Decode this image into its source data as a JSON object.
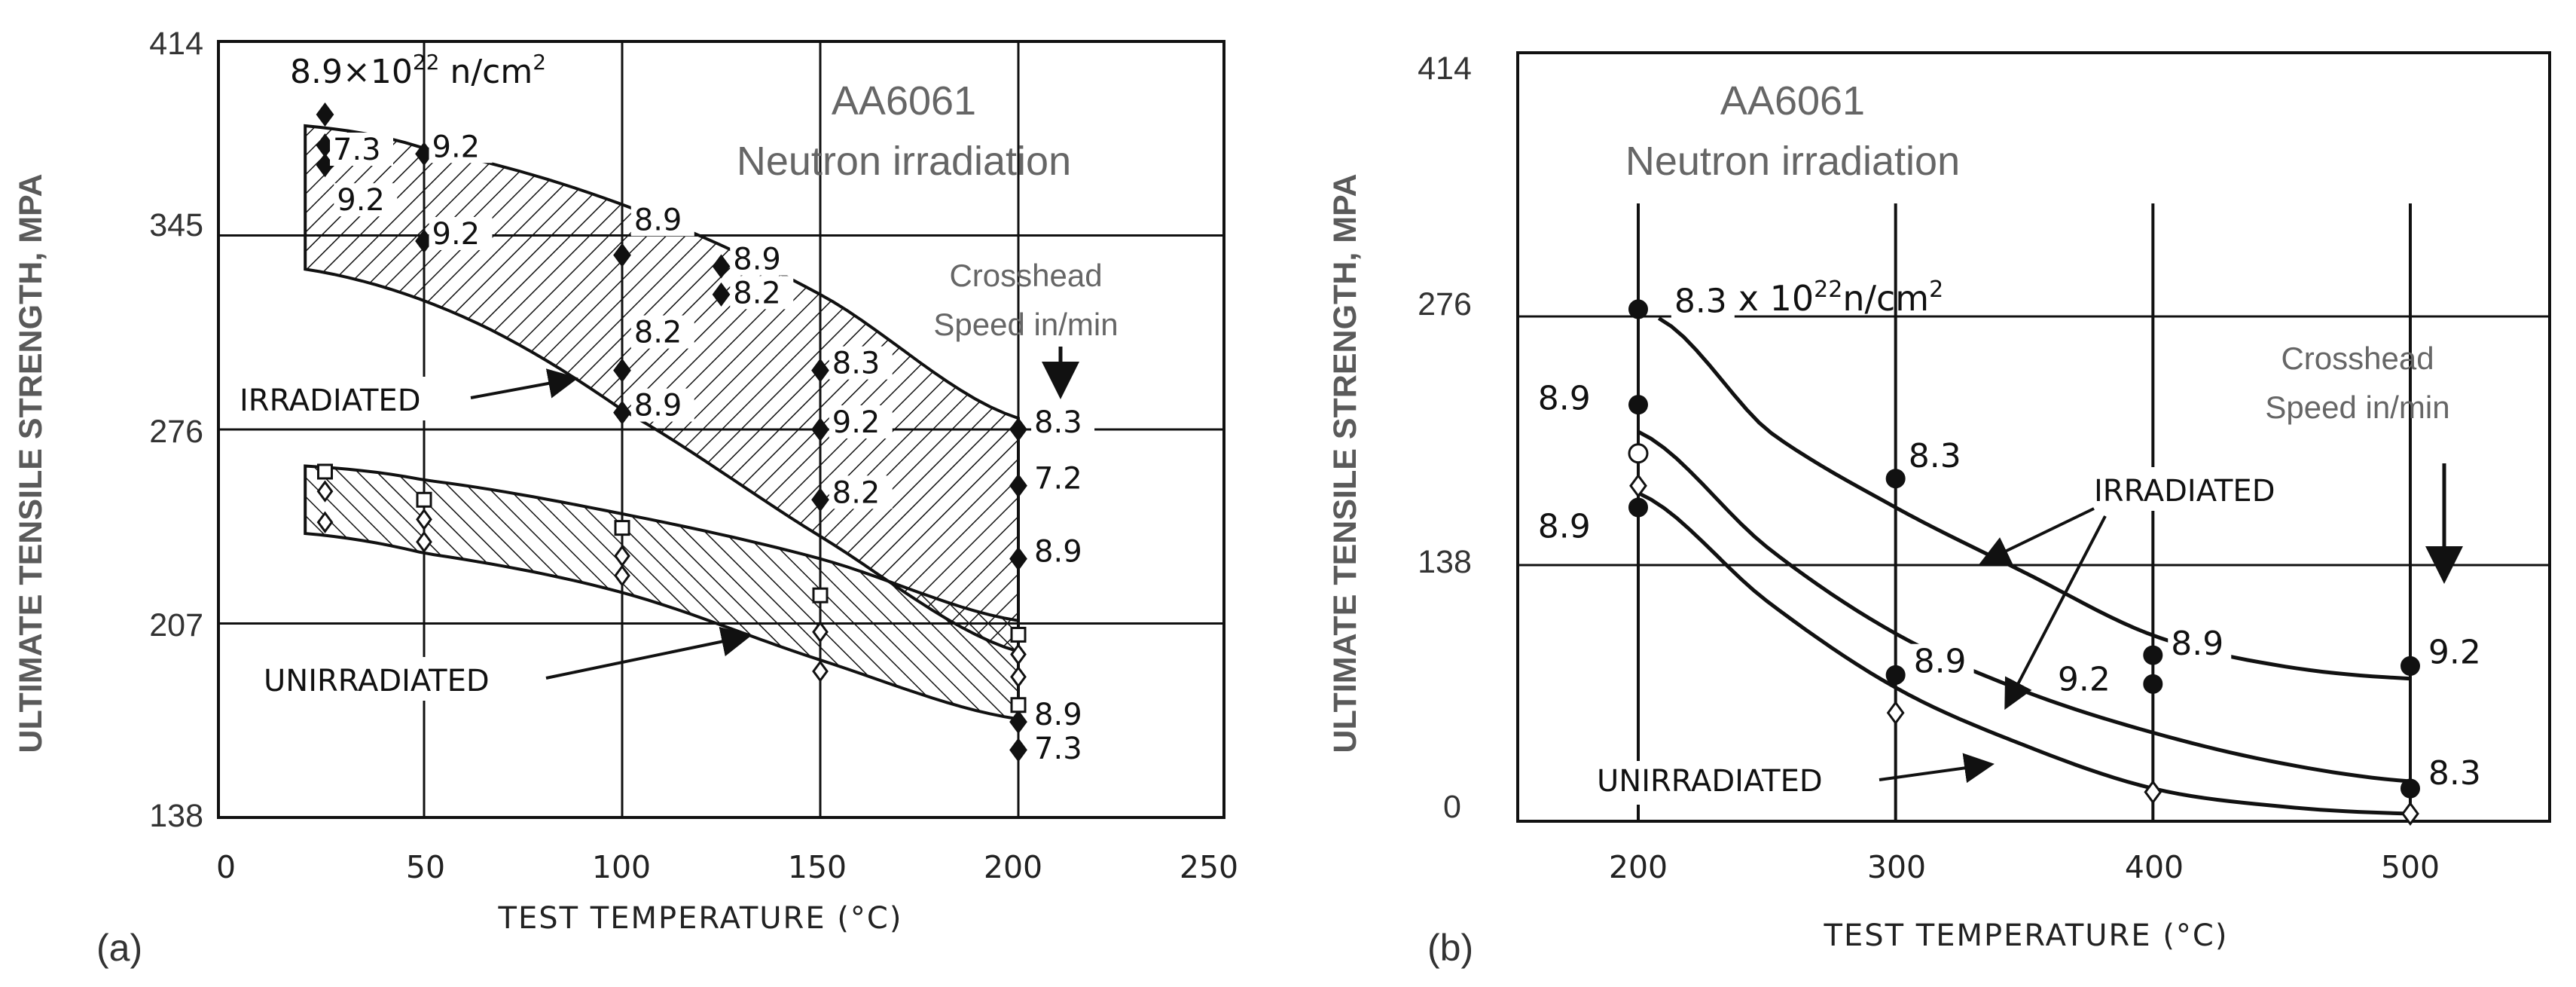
{
  "chart_data": [
    {
      "type": "scatter",
      "panel": "(a)",
      "ylabel": "ULTIMATE TENSILE STRENGTH, MPA",
      "xlabel": "TEST TEMPERATURE (°C)",
      "xlim": [
        0,
        250
      ],
      "ylim": [
        138,
        414
      ],
      "xticks": [
        "0",
        "50",
        "100",
        "150",
        "200",
        "250"
      ],
      "yticks": [
        "138",
        "207",
        "276",
        "345",
        "414"
      ],
      "title_lines": [
        "AA6061",
        "Neutron irradiation"
      ],
      "fluence_label": "8.9×10",
      "fluence_exp": "22",
      "fluence_unit": " n/cm",
      "fluence_unit_exp": "2",
      "crosshead_lines": [
        "Crosshead",
        "Speed in/min"
      ],
      "band_labels": {
        "irradiated": "IRRADIATED",
        "unirradiated": "UNIRRADIATED"
      },
      "irradiated_points": [
        {
          "x": 25,
          "y": 388
        },
        {
          "x": 25,
          "y": 377
        },
        {
          "x": 25,
          "y": 370
        },
        {
          "x": 50,
          "y": 374
        },
        {
          "x": 50,
          "y": 343
        },
        {
          "x": 100,
          "y": 338
        },
        {
          "x": 100,
          "y": 297
        },
        {
          "x": 100,
          "y": 282
        },
        {
          "x": 125,
          "y": 334
        },
        {
          "x": 125,
          "y": 324
        },
        {
          "x": 150,
          "y": 297
        },
        {
          "x": 150,
          "y": 276
        },
        {
          "x": 150,
          "y": 251
        },
        {
          "x": 200,
          "y": 276
        },
        {
          "x": 200,
          "y": 256
        },
        {
          "x": 200,
          "y": 230
        },
        {
          "x": 200,
          "y": 172
        },
        {
          "x": 200,
          "y": 162
        }
      ],
      "unirradiated_points": [
        {
          "x": 25,
          "y": 261
        },
        {
          "x": 25,
          "y": 254
        },
        {
          "x": 25,
          "y": 243
        },
        {
          "x": 50,
          "y": 251
        },
        {
          "x": 50,
          "y": 244
        },
        {
          "x": 50,
          "y": 236
        },
        {
          "x": 100,
          "y": 241
        },
        {
          "x": 100,
          "y": 231
        },
        {
          "x": 100,
          "y": 224
        },
        {
          "x": 150,
          "y": 217
        },
        {
          "x": 150,
          "y": 204
        },
        {
          "x": 150,
          "y": 190
        },
        {
          "x": 200,
          "y": 203
        },
        {
          "x": 200,
          "y": 196
        },
        {
          "x": 200,
          "y": 188
        },
        {
          "x": 200,
          "y": 178
        }
      ],
      "irradiated_band_upper": [
        [
          20,
          384
        ],
        [
          50,
          376
        ],
        [
          100,
          356
        ],
        [
          150,
          324
        ],
        [
          200,
          280
        ]
      ],
      "irradiated_band_lower": [
        [
          20,
          333
        ],
        [
          60,
          316
        ],
        [
          100,
          283
        ],
        [
          150,
          238
        ],
        [
          200,
          197
        ]
      ],
      "unirradiated_band_upper": [
        [
          20,
          263
        ],
        [
          50,
          258
        ],
        [
          100,
          246
        ],
        [
          150,
          230
        ],
        [
          200,
          208
        ]
      ],
      "unirradiated_band_lower": [
        [
          20,
          239
        ],
        [
          50,
          232
        ],
        [
          100,
          218
        ],
        [
          150,
          194
        ],
        [
          200,
          173
        ]
      ],
      "point_labels": [
        {
          "x": 27,
          "y": 373,
          "text": "7.3"
        },
        {
          "x": 28,
          "y": 355,
          "text": "9.2"
        },
        {
          "x": 52,
          "y": 374,
          "text": "9.2"
        },
        {
          "x": 52,
          "y": 343,
          "text": "9.2"
        },
        {
          "x": 103,
          "y": 348,
          "text": "8.9"
        },
        {
          "x": 103,
          "y": 308,
          "text": "8.2"
        },
        {
          "x": 103,
          "y": 282,
          "text": "8.9"
        },
        {
          "x": 128,
          "y": 334,
          "text": "8.9"
        },
        {
          "x": 128,
          "y": 322,
          "text": "8.2"
        },
        {
          "x": 153,
          "y": 297,
          "text": "8.3"
        },
        {
          "x": 153,
          "y": 276,
          "text": "9.2"
        },
        {
          "x": 153,
          "y": 251,
          "text": "8.2"
        },
        {
          "x": 204,
          "y": 276,
          "text": "8.3"
        },
        {
          "x": 204,
          "y": 256,
          "text": "7.2"
        },
        {
          "x": 204,
          "y": 230,
          "text": "8.9"
        },
        {
          "x": 204,
          "y": 172,
          "text": "8.9"
        },
        {
          "x": 204,
          "y": 160,
          "text": "7.3"
        }
      ]
    },
    {
      "type": "line",
      "panel": "(b)",
      "ylabel": "ULTIMATE TENSILE STRENGTH, MPA",
      "xlabel": "TEST TEMPERATURE (°C)",
      "xlim": [
        150,
        550
      ],
      "ylim": [
        0,
        414
      ],
      "xticks": [
        "200",
        "300",
        "400",
        "500"
      ],
      "yticks": [
        "0",
        "138",
        "276",
        "414"
      ],
      "title_lines": [
        "AA6061",
        "Neutron irradiation"
      ],
      "fluence_label": "8.3 x 10",
      "fluence_exp": "22",
      "fluence_unit": "n/cm",
      "fluence_unit_exp": "2",
      "crosshead_lines": [
        "Crosshead",
        "Speed in/min"
      ],
      "band_labels": {
        "irradiated": "IRRADIATED",
        "unirradiated": "UNIRRADIATED"
      },
      "curves": [
        {
          "name": "irradiated-upper",
          "points": [
            [
              208,
              275
            ],
            [
              250,
              213
            ],
            [
              300,
              170
            ],
            [
              350,
              134
            ],
            [
              400,
              99
            ],
            [
              450,
              82
            ],
            [
              500,
              75
            ]
          ]
        },
        {
          "name": "irradiated-middle",
          "points": [
            [
              200,
              212
            ],
            [
              250,
              148
            ],
            [
              300,
              100
            ],
            [
              350,
              68
            ],
            [
              400,
              45
            ],
            [
              450,
              28
            ],
            [
              500,
              18
            ]
          ]
        },
        {
          "name": "unirradiated",
          "points": [
            [
              200,
              178
            ],
            [
              250,
              118
            ],
            [
              300,
              70
            ],
            [
              350,
              38
            ],
            [
              400,
              14
            ],
            [
              450,
              4
            ],
            [
              500,
              0
            ]
          ]
        }
      ],
      "points_filled": [
        {
          "x": 200,
          "y": 280
        },
        {
          "x": 200,
          "y": 227
        },
        {
          "x": 200,
          "y": 170
        },
        {
          "x": 300,
          "y": 186
        },
        {
          "x": 300,
          "y": 77
        },
        {
          "x": 400,
          "y": 88
        },
        {
          "x": 400,
          "y": 72
        },
        {
          "x": 500,
          "y": 82
        },
        {
          "x": 500,
          "y": 14
        }
      ],
      "points_open": [
        {
          "x": 200,
          "y": 200
        },
        {
          "x": 200,
          "y": 182
        },
        {
          "x": 300,
          "y": 56
        },
        {
          "x": 400,
          "y": 12
        },
        {
          "x": 500,
          "y": 0
        }
      ],
      "point_labels": [
        {
          "x": 214,
          "y": 280,
          "text": "8.3"
        },
        {
          "x": 161,
          "y": 226,
          "text": "8.9"
        },
        {
          "x": 161,
          "y": 155,
          "text": "8.9"
        },
        {
          "x": 305,
          "y": 194,
          "text": "8.3"
        },
        {
          "x": 307,
          "y": 80,
          "text": "8.9"
        },
        {
          "x": 407,
          "y": 90,
          "text": "8.9"
        },
        {
          "x": 363,
          "y": 70,
          "text": "9.2"
        },
        {
          "x": 507,
          "y": 85,
          "text": "9.2"
        },
        {
          "x": 507,
          "y": 18,
          "text": "8.3"
        }
      ]
    }
  ]
}
